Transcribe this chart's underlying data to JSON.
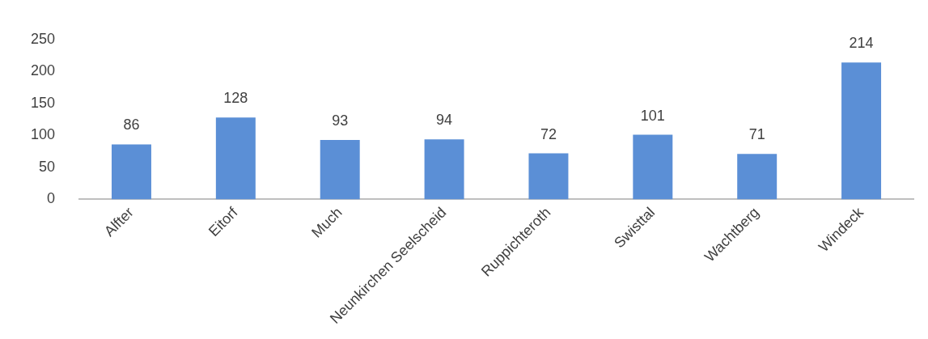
{
  "chart_data": {
    "type": "bar",
    "categories": [
      "Alfter",
      "Eitorf",
      "Much",
      "Neunkirchen Seelscheid",
      "Ruppichteroth",
      "Swisttal",
      "Wachtberg",
      "Windeck"
    ],
    "values": [
      86,
      128,
      93,
      94,
      72,
      101,
      71,
      214
    ],
    "color": "#5b8fd6",
    "ylim": [
      0,
      250
    ],
    "yticks": [
      0,
      50,
      100,
      150,
      200,
      250
    ],
    "grid": false,
    "legend": false,
    "data_labels": true
  }
}
